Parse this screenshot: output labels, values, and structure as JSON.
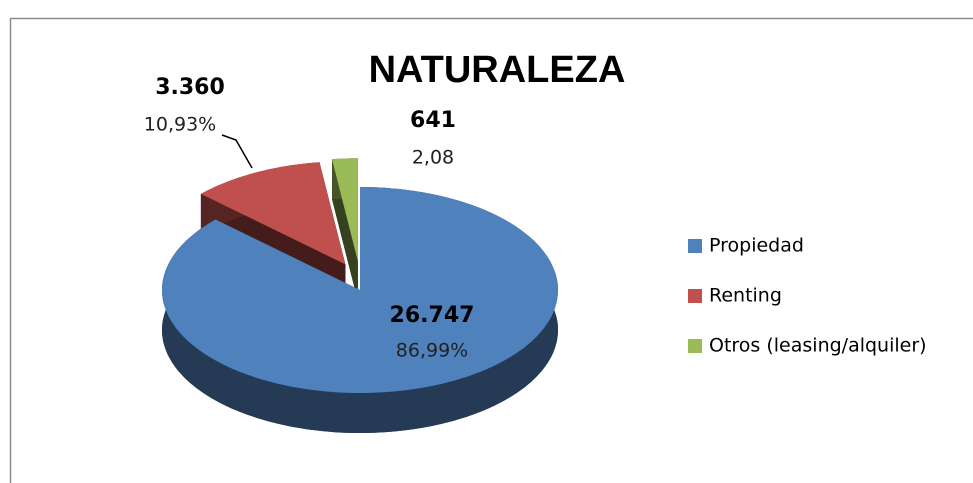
{
  "chart_data": {
    "type": "pie",
    "title": "NATURALEZA",
    "categories": [
      "Propiedad",
      "Renting",
      "Otros (leasing/alquiler)"
    ],
    "values": [
      26747,
      3360,
      641
    ],
    "value_labels": [
      "26.747",
      "3.360",
      "641"
    ],
    "percent_labels": [
      "86,99%",
      "10,93%",
      "2,08"
    ],
    "colors": [
      "#4f81bd",
      "#c0504d",
      "#9bbb59"
    ]
  }
}
